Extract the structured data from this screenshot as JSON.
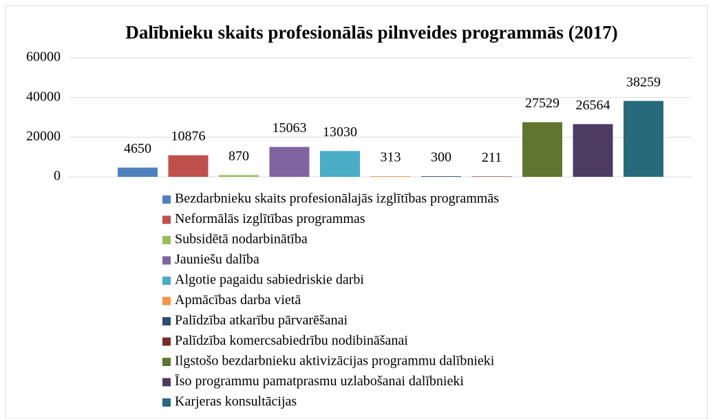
{
  "chart_data": {
    "type": "bar",
    "title": "Dalībnieku skaits profesionālās pilnveides programmās (2017)",
    "series": [
      {
        "name": "Bezdarbnieku skaits profesionālajās izglītības programmās",
        "color": "#4f81bd",
        "values": [
          4650
        ]
      },
      {
        "name": "Neformālās izglītības programmas",
        "color": "#c0504d",
        "values": [
          10876
        ]
      },
      {
        "name": "Subsidētā nodarbinātība",
        "color": "#9bbb59",
        "values": [
          870
        ]
      },
      {
        "name": "Jauniešu dalība",
        "color": "#8064a2",
        "values": [
          15063
        ]
      },
      {
        "name": "Algotie pagaidu sabiedriskie darbi",
        "color": "#4bacc6",
        "values": [
          13030
        ]
      },
      {
        "name": "Apmācības darba vietā",
        "color": "#f79646",
        "values": [
          313
        ]
      },
      {
        "name": "Palīdzība atkarību pārvarēšanai",
        "color": "#2c4d75",
        "values": [
          300
        ]
      },
      {
        "name": "Palīdzība komercsabiedrību nodibināšanai",
        "color": "#772c2a",
        "values": [
          211
        ]
      },
      {
        "name": "Ilgstošo bezdarbnieku aktivizācijas programmu dalībnieki",
        "color": "#5f7530",
        "values": [
          27529
        ]
      },
      {
        "name": "Īso programmu pamatprasmu uzlabošanai dalībnieki",
        "color": "#4d3b62",
        "values": [
          26564
        ]
      },
      {
        "name": "Karjeras konsultācijas",
        "color": "#276a7c",
        "values": [
          38259
        ]
      }
    ],
    "ylim": [
      0,
      60000
    ],
    "yticks": [
      0,
      20000,
      40000,
      60000
    ],
    "grid": true,
    "legend": "bottom"
  }
}
